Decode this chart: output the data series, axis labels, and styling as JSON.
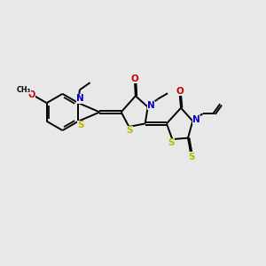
{
  "bg_color": "#e8e8e8",
  "bond_color": "#000000",
  "S_color": "#b8b800",
  "N_color": "#0000cc",
  "O_color": "#cc0000",
  "line_width": 1.4,
  "fig_size": [
    3.0,
    3.0
  ],
  "dpi": 100,
  "xlim": [
    0,
    10
  ],
  "ylim": [
    0,
    10
  ]
}
